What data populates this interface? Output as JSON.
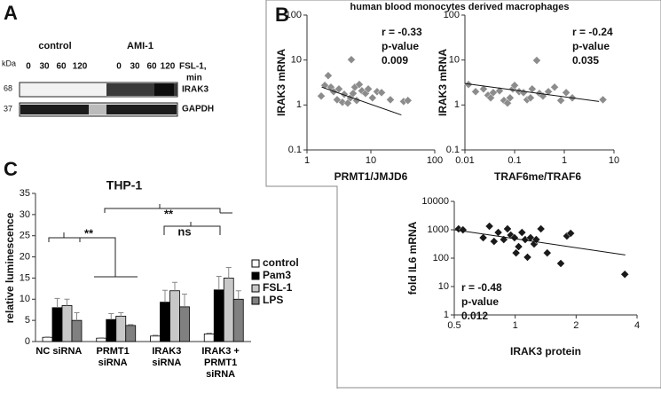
{
  "panel_labels": [
    "A",
    "B",
    "C"
  ],
  "blot": {
    "kda_label": "kDa",
    "conditions": [
      "control",
      "AMI-1"
    ],
    "times": [
      "0",
      "30",
      "60",
      "120",
      "0",
      "30",
      "60",
      "120"
    ],
    "time_label": [
      "FSL-1,",
      "min"
    ],
    "rows": [
      {
        "marker": "68",
        "name": "IRAK3"
      },
      {
        "marker": "37",
        "name": "GAPDH"
      }
    ]
  },
  "panel_b_title": "human blood monocytes derived macrophages",
  "chart_data": [
    {
      "type": "scatter",
      "xlabel": "PRMT1/JMJD6",
      "ylabel": "IRAK3 mRNA",
      "color": "#8c8c8c",
      "xlog": true,
      "ylog": true,
      "xlim": [
        1,
        100
      ],
      "ylim": [
        0.1,
        100
      ],
      "xticks": [
        1,
        10,
        100
      ],
      "yticks": [
        0.1,
        1,
        10,
        100
      ],
      "annotation": [
        "r = -0.33",
        "p-value",
        "0.009"
      ],
      "x": [
        1.67,
        1.9,
        2.15,
        2.37,
        2.61,
        2.96,
        3.16,
        3.59,
        3.83,
        4.35,
        4.79,
        4.95,
        5.27,
        5.62,
        5.99,
        6.59,
        7.24,
        8.25,
        9.1,
        10.6,
        12.5,
        14.7,
        20.2,
        32.6,
        38
      ],
      "y": [
        1.58,
        2.73,
        4.5,
        2.49,
        1.98,
        1.31,
        2.27,
        1.15,
        1.73,
        1.1,
        1.44,
        10.2,
        1.81,
        2.49,
        1.26,
        2.86,
        2.07,
        1.81,
        2.27,
        1.44,
        1.98,
        1.89,
        1.31,
        1.2,
        1.26
      ],
      "trendline": {
        "x": [
          1.7,
          30
        ],
        "y": [
          2.5,
          0.6
        ]
      }
    },
    {
      "type": "scatter",
      "xlabel": "TRAF6me/TRAF6",
      "ylabel": "IRAK3 mRNA",
      "color": "#8c8c8c",
      "xlog": true,
      "ylog": true,
      "xlim": [
        0.01,
        10
      ],
      "ylim": [
        0.1,
        100
      ],
      "xticks": [
        0.01,
        0.1,
        1,
        10
      ],
      "yticks": [
        0.1,
        1,
        10,
        100
      ],
      "annotation": [
        "r = -0.24",
        "p-value",
        "0.035"
      ],
      "x": [
        0.0118,
        0.0164,
        0.0237,
        0.0291,
        0.033,
        0.0372,
        0.0497,
        0.061,
        0.072,
        0.081,
        0.092,
        0.1,
        0.123,
        0.151,
        0.178,
        0.209,
        0.226,
        0.279,
        0.316,
        0.372,
        0.478,
        0.637,
        0.851,
        1.09,
        1.45,
        6.0
      ],
      "y": [
        2.86,
        1.98,
        2.27,
        1.65,
        1.44,
        1.89,
        2.07,
        1.26,
        1.1,
        1.44,
        2.27,
        2.73,
        1.98,
        1.89,
        1.31,
        1.44,
        2.27,
        9.8,
        1.81,
        1.58,
        1.98,
        2.49,
        1.26,
        1.89,
        1.44,
        1.31
      ],
      "trendline": {
        "x": [
          0.01,
          5
        ],
        "y": [
          3,
          1.2
        ]
      }
    },
    {
      "type": "scatter",
      "xlabel": "IRAK3 protein",
      "ylabel": "fold IL6 mRNA",
      "color": "#1a1a1a",
      "xlog": true,
      "ylog": true,
      "xlim": [
        0.5,
        4
      ],
      "ylim": [
        1,
        10000
      ],
      "xticks": [
        0.5,
        1,
        2,
        4
      ],
      "yticks": [
        1,
        10,
        100,
        1000,
        10000
      ],
      "annotation": [
        "r =  -0.48",
        "p-value",
        "0.012"
      ],
      "x": [
        0.525,
        0.552,
        0.695,
        0.746,
        0.786,
        0.825,
        0.878,
        0.916,
        0.951,
        0.992,
        1.01,
        1.04,
        1.08,
        1.12,
        1.15,
        1.19,
        1.24,
        1.27,
        1.34,
        1.44,
        1.68,
        1.8,
        1.88,
        3.48
      ],
      "y": [
        1076,
        995,
        525,
        1334,
        390,
        803,
        452,
        1076,
        649,
        525,
        153,
        254,
        803,
        452,
        108,
        525,
        316,
        452,
        1076,
        153,
        65,
        603,
        750,
        27
      ],
      "trendline": {
        "x": [
          0.5,
          3.5
        ],
        "y": [
          1000,
          130
        ]
      }
    },
    {
      "type": "bar",
      "title": "THP-1",
      "ylabel": "relative luminescence",
      "ylim": [
        0,
        35
      ],
      "yticks": [
        0,
        5,
        10,
        15,
        20,
        25,
        30,
        35
      ],
      "categories": [
        "NC siRNA",
        "PRMT1\nsiRNA",
        "IRAK3\nsiRNA",
        "IRAK3 +\nPRMT1\nsiRNA"
      ],
      "series": [
        {
          "name": "control",
          "color": "#ffffff",
          "values": [
            1,
            0.8,
            1.3,
            1.8
          ],
          "errors": [
            0.1,
            0.1,
            0.2,
            0.2
          ]
        },
        {
          "name": "Pam3",
          "color": "#000000",
          "values": [
            8,
            5.2,
            9.3,
            12.2
          ],
          "errors": [
            2.2,
            1.4,
            2.8,
            3.2
          ]
        },
        {
          "name": "FSL-1",
          "color": "#c8c8c8",
          "values": [
            8.5,
            6,
            12,
            15
          ],
          "errors": [
            1.5,
            0.8,
            2,
            2.5
          ]
        },
        {
          "name": "LPS",
          "color": "#808080",
          "values": [
            5,
            3.8,
            8.2,
            10
          ],
          "errors": [
            1.8,
            0.2,
            3,
            2
          ]
        }
      ],
      "significance": [
        "**",
        "**",
        "ns"
      ]
    }
  ]
}
